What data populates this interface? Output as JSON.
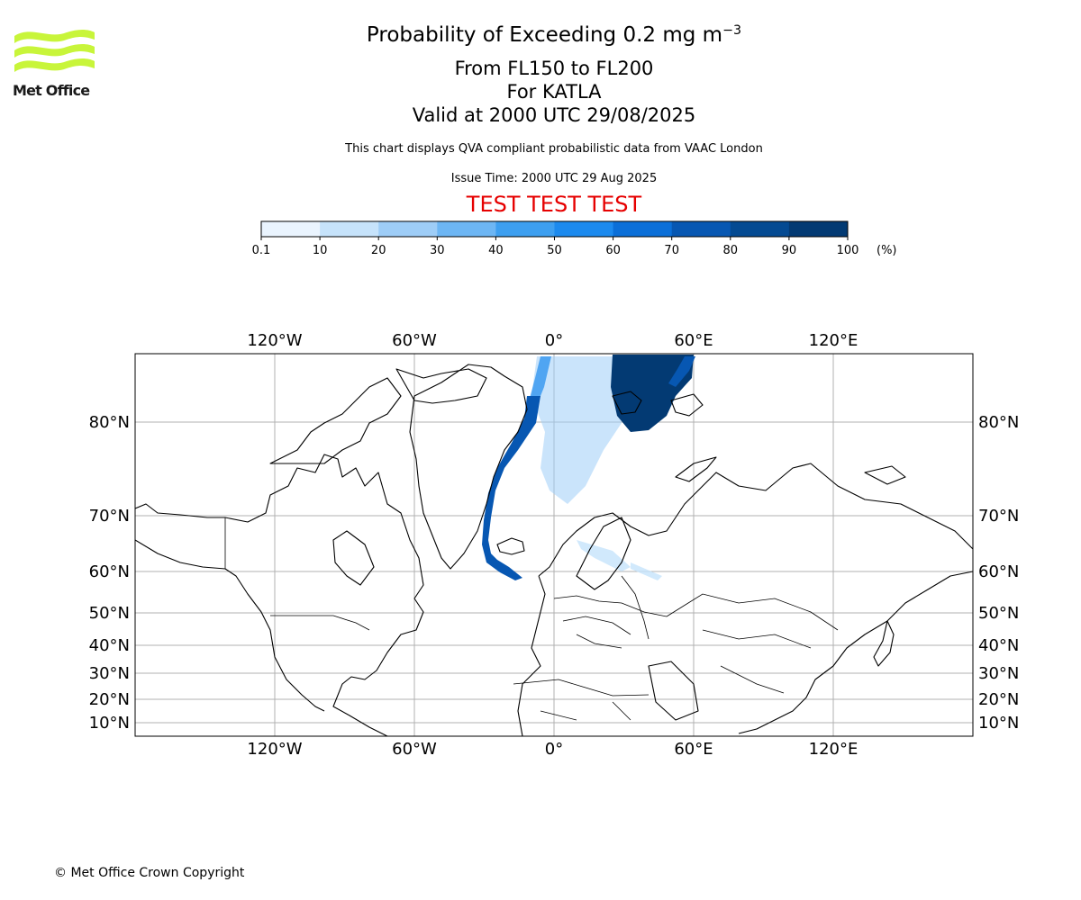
{
  "header": {
    "logo_text": "Met Office",
    "title_main": "Probability of Exceeding 0.2 mg m",
    "title_sup": "−3",
    "subtitle_levels": "From FL150 to FL200",
    "subtitle_volcano": "For KATLA",
    "subtitle_valid": "Valid at 2000 UTC 29/08/2025",
    "note": "This chart displays QVA compliant probabilistic data from VAAC London",
    "issue_time": "Issue Time: 2000 UTC 29 Aug 2025",
    "test_banner": "TEST TEST TEST"
  },
  "legend": {
    "ticks": [
      "0.1",
      "10",
      "20",
      "30",
      "40",
      "50",
      "60",
      "70",
      "80",
      "90",
      "100"
    ],
    "unit": "(%)",
    "colors": [
      "#eaf4fe",
      "#c6e3fb",
      "#9ecdf7",
      "#6db6f4",
      "#3d9ff0",
      "#1c8aee",
      "#0b6fd8",
      "#0757b2",
      "#044a92",
      "#033a73",
      "#022a55"
    ]
  },
  "map": {
    "lon_labels": [
      "120°W",
      "60°W",
      "0°",
      "60°E",
      "120°E"
    ],
    "lat_labels": [
      "80°N",
      "70°N",
      "60°N",
      "50°N",
      "40°N",
      "30°N",
      "20°N",
      "10°N"
    ],
    "plume_color": "#033a73",
    "gridline_color": "#b0b0b0"
  },
  "footer": {
    "copyright": "© Met Office Crown Copyright"
  }
}
